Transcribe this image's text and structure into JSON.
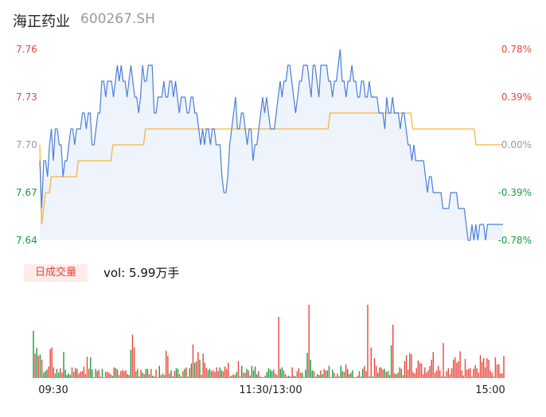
{
  "header": {
    "name": "海正药业",
    "code": "600267.SH"
  },
  "volume_header": {
    "tab_label": "日成交量",
    "vol_prefix": "vol: ",
    "vol_value": "5.99万手"
  },
  "colors": {
    "up": "#e8463a",
    "down": "#1a9b3e",
    "price_line": "#4a7fd9",
    "avg_line": "#f2b73b",
    "area_fill": "#eef3fc",
    "neutral": "#9a9a9a"
  },
  "chart_data": [
    {
      "type": "line",
      "title": "",
      "x_ticks": [
        "09:30",
        "11:30/13:00",
        "15:00"
      ],
      "y_ticks_left": [
        "7.76",
        "7.73",
        "7.70",
        "7.67",
        "7.64"
      ],
      "y_ticks_right": [
        "0.78%",
        "0.39%",
        "0.00%",
        "-0.39%",
        "-0.78%"
      ],
      "ylim": [
        7.64,
        7.76
      ],
      "prev_close": 7.7,
      "series": [
        {
          "role": "price",
          "values": [
            7.69,
            7.66,
            7.69,
            7.69,
            7.68,
            7.7,
            7.71,
            7.69,
            7.71,
            7.71,
            7.7,
            7.7,
            7.68,
            7.69,
            7.69,
            7.7,
            7.71,
            7.71,
            7.7,
            7.71,
            7.71,
            7.71,
            7.72,
            7.72,
            7.71,
            7.72,
            7.72,
            7.7,
            7.7,
            7.71,
            7.72,
            7.72,
            7.74,
            7.74,
            7.73,
            7.74,
            7.74,
            7.74,
            7.73,
            7.74,
            7.75,
            7.74,
            7.75,
            7.74,
            7.74,
            7.73,
            7.74,
            7.75,
            7.74,
            7.73,
            7.73,
            7.72,
            7.73,
            7.75,
            7.74,
            7.74,
            7.75,
            7.75,
            7.75,
            7.72,
            7.72,
            7.73,
            7.73,
            7.73,
            7.74,
            7.73,
            7.73,
            7.74,
            7.74,
            7.73,
            7.74,
            7.73,
            7.72,
            7.73,
            7.73,
            7.73,
            7.72,
            7.72,
            7.73,
            7.73,
            7.72,
            7.72,
            7.71,
            7.7,
            7.71,
            7.7,
            7.71,
            7.71,
            7.7,
            7.71,
            7.71,
            7.7,
            7.7,
            7.7,
            7.68,
            7.67,
            7.67,
            7.68,
            7.7,
            7.71,
            7.72,
            7.73,
            7.71,
            7.71,
            7.72,
            7.72,
            7.71,
            7.7,
            7.71,
            7.71,
            7.69,
            7.7,
            7.7,
            7.71,
            7.72,
            7.73,
            7.72,
            7.73,
            7.72,
            7.71,
            7.71,
            7.71,
            7.72,
            7.73,
            7.74,
            7.73,
            7.74,
            7.74,
            7.75,
            7.75,
            7.74,
            7.73,
            7.72,
            7.73,
            7.74,
            7.74,
            7.75,
            7.75,
            7.75,
            7.74,
            7.73,
            7.75,
            7.75,
            7.74,
            7.73,
            7.75,
            7.75,
            7.75,
            7.75,
            7.74,
            7.74,
            7.73,
            7.74,
            7.74,
            7.75,
            7.76,
            7.74,
            7.74,
            7.73,
            7.74,
            7.74,
            7.75,
            7.74,
            7.74,
            7.73,
            7.73,
            7.74,
            7.74,
            7.73,
            7.73,
            7.74,
            7.73,
            7.73,
            7.73,
            7.73,
            7.72,
            7.72,
            7.72,
            7.71,
            7.73,
            7.72,
            7.72,
            7.73,
            7.72,
            7.72,
            7.72,
            7.71,
            7.72,
            7.72,
            7.71,
            7.7,
            7.7,
            7.69,
            7.7,
            7.69,
            7.69,
            7.69,
            7.69,
            7.69,
            7.68,
            7.67,
            7.68,
            7.68,
            7.67,
            7.67,
            7.67,
            7.67,
            7.67,
            7.66,
            7.66,
            7.66,
            7.66,
            7.67,
            7.67,
            7.67,
            7.67,
            7.66,
            7.66,
            7.66,
            7.66,
            7.65,
            7.64,
            7.64,
            7.65,
            7.64,
            7.65,
            7.64,
            7.65,
            7.65,
            7.65,
            7.64,
            7.65,
            7.65,
            7.65,
            7.65,
            7.65,
            7.65,
            7.65,
            7.65,
            7.65
          ]
        },
        {
          "role": "average",
          "values": [
            7.7,
            7.65,
            7.66,
            7.67,
            7.67,
            7.67,
            7.68,
            7.68,
            7.68,
            7.68,
            7.68,
            7.68,
            7.68,
            7.68,
            7.68,
            7.68,
            7.68,
            7.68,
            7.68,
            7.68,
            7.69,
            7.69,
            7.69,
            7.69,
            7.69,
            7.69,
            7.69,
            7.69,
            7.69,
            7.69,
            7.69,
            7.69,
            7.69,
            7.69,
            7.69,
            7.69,
            7.69,
            7.69,
            7.7,
            7.7,
            7.7,
            7.7,
            7.7,
            7.7,
            7.7,
            7.7,
            7.7,
            7.7,
            7.7,
            7.7,
            7.7,
            7.7,
            7.7,
            7.7,
            7.7,
            7.71,
            7.71,
            7.71,
            7.71,
            7.71,
            7.71,
            7.71,
            7.71,
            7.71,
            7.71,
            7.71,
            7.71,
            7.71,
            7.71,
            7.71,
            7.71,
            7.71,
            7.71,
            7.71,
            7.71,
            7.71,
            7.71,
            7.71,
            7.71,
            7.71,
            7.71,
            7.71,
            7.71,
            7.71,
            7.71,
            7.71,
            7.71,
            7.71,
            7.71,
            7.71,
            7.71,
            7.71,
            7.71,
            7.71,
            7.71,
            7.71,
            7.71,
            7.71,
            7.71,
            7.71,
            7.71,
            7.71,
            7.71,
            7.71,
            7.71,
            7.71,
            7.71,
            7.71,
            7.71,
            7.71,
            7.71,
            7.71,
            7.71,
            7.71,
            7.71,
            7.71,
            7.71,
            7.71,
            7.71,
            7.71,
            7.71,
            7.71,
            7.71,
            7.71,
            7.71,
            7.71,
            7.71,
            7.71,
            7.71,
            7.71,
            7.71,
            7.71,
            7.71,
            7.71,
            7.71,
            7.71,
            7.71,
            7.71,
            7.71,
            7.71,
            7.71,
            7.71,
            7.71,
            7.71,
            7.71,
            7.71,
            7.71,
            7.71,
            7.71,
            7.71,
            7.71,
            7.72,
            7.72,
            7.72,
            7.72,
            7.72,
            7.72,
            7.72,
            7.72,
            7.72,
            7.72,
            7.72,
            7.72,
            7.72,
            7.72,
            7.72,
            7.72,
            7.72,
            7.72,
            7.72,
            7.72,
            7.72,
            7.72,
            7.72,
            7.72,
            7.72,
            7.72,
            7.72,
            7.72,
            7.72,
            7.72,
            7.72,
            7.72,
            7.72,
            7.72,
            7.72,
            7.72,
            7.72,
            7.72,
            7.72,
            7.72,
            7.72,
            7.72,
            7.72,
            7.71,
            7.71,
            7.71,
            7.71,
            7.71,
            7.71,
            7.71,
            7.71,
            7.71,
            7.71,
            7.71,
            7.71,
            7.71,
            7.71,
            7.71,
            7.71,
            7.71,
            7.71,
            7.71,
            7.71,
            7.71,
            7.71,
            7.71,
            7.71,
            7.71,
            7.71,
            7.71,
            7.71,
            7.71,
            7.71,
            7.71,
            7.71,
            7.71,
            7.7,
            7.7,
            7.7,
            7.7,
            7.7,
            7.7,
            7.7,
            7.7,
            7.7,
            7.7,
            7.7,
            7.7,
            7.7,
            7.7,
            7.7
          ]
        }
      ]
    },
    {
      "type": "bar",
      "title": "",
      "x_ticks": [
        "09:30",
        "11:30/13:00",
        "15:00"
      ],
      "bar_color_codes": "GRGRGRRGGRRRRRGGRRGGGGGRRGRRRRRGRRGGGRGRRGGRRRRGRGGRRRRRGRGRRGRGRGRGGRRGRRGGGRGRRRGGRGGRRRGRGRGRGRRGRRRRGGRRRRRGGRRRRGRRRGRRGRRGRRGGGGRRRGRGGGGRRRRGGRRGGRRGGRRRGGGGRGGRRRGRGRRGGRGRRRGGGRRGGRGRGRRRGRRRGRGRRGRRRGRGGGRRGRRGGRRRR",
      "values": [
        0.62,
        0.32,
        0.39,
        0.29,
        0.31,
        0.24,
        0.07,
        0.09,
        0.11,
        0.15,
        0.38,
        0.4,
        0.14,
        0.06,
        0.12,
        0.07,
        0.13,
        0.07,
        0.34,
        0.11,
        0.04,
        0.06,
        0.04,
        0.14,
        0.08,
        0.13,
        0.12,
        0.06,
        0.08,
        0.09,
        0.15,
        0.05,
        0.28,
        0.12,
        0.27,
        0.11,
        0.01,
        0.12,
        0.09,
        0.11,
        0.02,
        0.12,
        0.01,
        0.08,
        0.08,
        0.07,
        0.05,
        0.03,
        0.14,
        0.13,
        0.11,
        0.04,
        0.09,
        0.11,
        0.09,
        0.1,
        0.05,
        0.04,
        0.37,
        0.57,
        0.4,
        0.09,
        0.12,
        0.02,
        0.11,
        0.07,
        0.05,
        0.12,
        0.12,
        0.05,
        0.12,
        0.03,
        0.02,
        0.11,
        0.01,
        0.16,
        0.04,
        0.06,
        0.04,
        0.36,
        0.29,
        0.06,
        0.1,
        0.02,
        0.09,
        0.13,
        0.12,
        0.05,
        0.02,
        0.09,
        0.12,
        0.14,
        0.02,
        0.13,
        0.19,
        0.44,
        0.2,
        0.22,
        0.34,
        0.24,
        0.04,
        0.32,
        0.2,
        0.13,
        0.1,
        0.12,
        0.09,
        0.1,
        0.08,
        0.14,
        0.09,
        0.14,
        0.1,
        0.09,
        0.15,
        0.12,
        0.2,
        0.02,
        0.03,
        0.05,
        0.04,
        0.08,
        0.22,
        0.02,
        0.16,
        0.07,
        0.07,
        0.12,
        0.1,
        0.03,
        0.16,
        0.1,
        0.15,
        0.05,
        0.09,
        0.02,
        0.01,
        0.01,
        0.03,
        0.08,
        0.13,
        0.11,
        0.09,
        0.11,
        0.06,
        0.04,
        0.8,
        0.12,
        0.14,
        0.1,
        0.05,
        0.02,
        0.03,
        0.02,
        0.14,
        0.03,
        0.02,
        0.09,
        0.13,
        0.07,
        0.07,
        0.01,
        0.11,
        0.33,
        0.96,
        0.24,
        0.1,
        0.09,
        0.02,
        0.05,
        0.04,
        0.1,
        0.05,
        0.12,
        0.1,
        0.1,
        0.16,
        0.01,
        0.11,
        0.07,
        0.02,
        0.06,
        0.02,
        0.16,
        0.09,
        0.08,
        0.18,
        0.12,
        0.05,
        0.07,
        0.1,
        0.01,
        0.01,
        0.03,
        0.09,
        0.02,
        0.12,
        0.16,
        0.09,
        0.96,
        0.02,
        0.4,
        0.02,
        0.26,
        0.16,
        0.07,
        0.14,
        0.14,
        0.11,
        0.12,
        0.08,
        0.09,
        0.04,
        0.43,
        0.7,
        0.06,
        0.05,
        0.07,
        0.14,
        0.12,
        0.04,
        0.22,
        0.3,
        0.11,
        0.33,
        0.31,
        0.08,
        0.06,
        0.13,
        0.23,
        0.2,
        0.19,
        0.05,
        0.14,
        0.07,
        0.1,
        0.16,
        0.24,
        0.34,
        0.07,
        0.1,
        0.16,
        0.1,
        0.02,
        0.46,
        0.02,
        0.09,
        0.13,
        0.05,
        0.13,
        0.24,
        0.27,
        0.2,
        0.22,
        0.35,
        0.1,
        0.03,
        0.25,
        0.11,
        0.12,
        0.13,
        0.02,
        0.12,
        0.17,
        0.13,
        0.07,
        0.3,
        0.21,
        0.26,
        0.14,
        0.26,
        0.24,
        0.1,
        0.07,
        0.02,
        0.27,
        0.18,
        0.18,
        0.06,
        0.06,
        0.29
      ]
    }
  ]
}
